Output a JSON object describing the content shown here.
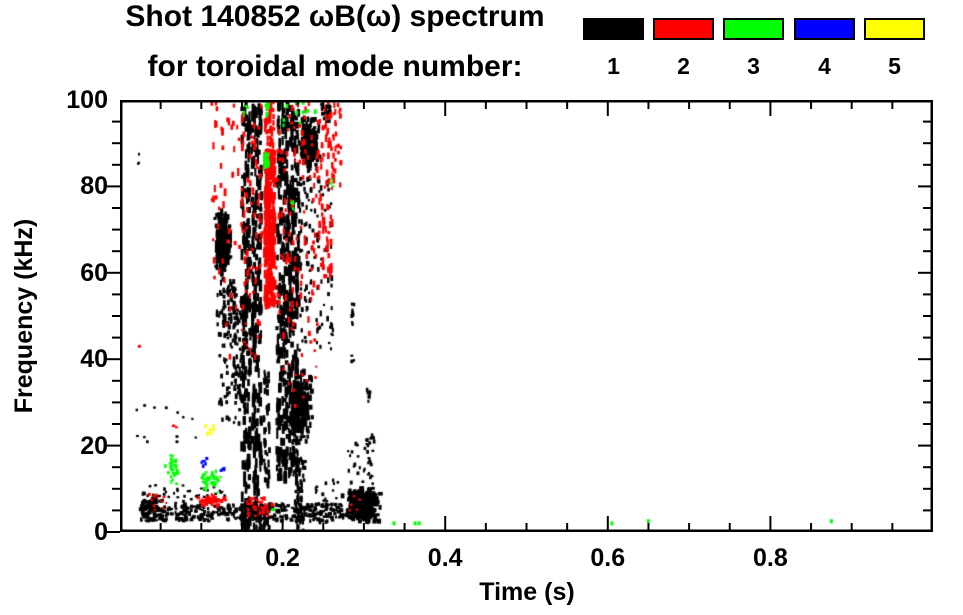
{
  "title": {
    "line1": "Shot 140852 ωB(ω) spectrum",
    "line2": "for toroidal mode number:"
  },
  "legend": {
    "entries": [
      {
        "label": "1",
        "color": "#000000"
      },
      {
        "label": "2",
        "color": "#ff0000"
      },
      {
        "label": "3",
        "color": "#00ff00"
      },
      {
        "label": "4",
        "color": "#0000ff"
      },
      {
        "label": "5",
        "color": "#ffff00"
      }
    ]
  },
  "chart_data": {
    "type": "scatter",
    "title": "Shot 140852 ωB(ω) spectrum for toroidal mode number: 1 2 3 4 5",
    "xlabel": "Time (s)",
    "ylabel": "Frequency (kHz)",
    "xlim": [
      0,
      1.0
    ],
    "ylim": [
      0,
      100
    ],
    "xticks": {
      "values": [
        0.2,
        0.4,
        0.6,
        0.8
      ],
      "labels": [
        "0.2",
        "0.4",
        "0.6",
        "0.8"
      ],
      "minor_step": 0.05
    },
    "yticks": {
      "values": [
        0,
        20,
        40,
        60,
        80,
        100
      ],
      "labels": [
        "0",
        "20",
        "40",
        "60",
        "80",
        "100"
      ],
      "minor_step": 5
    },
    "grid": false,
    "legend_position": "top-right",
    "frame_color": "#000000",
    "series": [
      {
        "name": "1",
        "color": "#000000",
        "clusters": [
          {
            "t": [
              0.025,
              0.275
            ],
            "f": [
              2.5,
              6.5
            ],
            "n": 420,
            "mark": [
              2,
              4,
              2,
              4
            ],
            "dist": "uniform"
          },
          {
            "t": [
              0.027,
              0.052
            ],
            "f": [
              3,
              9
            ],
            "n": 70,
            "mark": [
              2,
              4,
              2,
              4
            ],
            "dist": "uniform"
          },
          {
            "t": [
              0.03,
              0.13
            ],
            "f": [
              6.5,
              11
            ],
            "n": 40,
            "mark": [
              2,
              3,
              2,
              3
            ],
            "dist": "uniform"
          },
          {
            "t": [
              0.018,
              0.095
            ],
            "f": [
              20,
              30
            ],
            "n": 13,
            "mark": [
              2,
              3,
              2,
              3
            ],
            "dist": "uniform"
          },
          {
            "t": [
              0.02,
              0.026
            ],
            "f": [
              85,
              89
            ],
            "n": 3,
            "mark": [
              2,
              2,
              2,
              3
            ],
            "dist": "uniform"
          },
          {
            "t": [
              0.115,
              0.138
            ],
            "f": [
              57,
              76
            ],
            "n": 260,
            "mark": [
              2,
              4,
              3,
              8
            ],
            "dist": "gauss"
          },
          {
            "t": [
              0.118,
              0.142
            ],
            "f": [
              45,
              58
            ],
            "n": 70,
            "mark": [
              2,
              3,
              3,
              6
            ],
            "dist": "uniform"
          },
          {
            "t": [
              0.122,
              0.148
            ],
            "f": [
              25,
              45
            ],
            "n": 45,
            "mark": [
              2,
              3,
              2,
              5
            ],
            "dist": "uniform"
          },
          {
            "t": [
              0.14,
              0.152
            ],
            "f": [
              30,
              55
            ],
            "n": 55,
            "mark": [
              2,
              3,
              3,
              6
            ],
            "dist": "uniform"
          },
          {
            "t": [
              0.15,
              0.16
            ],
            "f": [
              0,
              100
            ],
            "n": 190,
            "mark": [
              2,
              4,
              4,
              12
            ],
            "dist": "uniform"
          },
          {
            "t": [
              0.163,
              0.174
            ],
            "f": [
              0,
              100
            ],
            "n": 190,
            "mark": [
              2,
              4,
              4,
              12
            ],
            "dist": "uniform"
          },
          {
            "t": [
              0.158,
              0.166
            ],
            "f": [
              5,
              95
            ],
            "n": 40,
            "mark": [
              2,
              3,
              3,
              8
            ],
            "dist": "uniform"
          },
          {
            "t": [
              0.177,
              0.184
            ],
            "f": [
              0,
              38
            ],
            "n": 55,
            "mark": [
              2,
              3,
              3,
              8
            ],
            "dist": "uniform"
          },
          {
            "t": [
              0.193,
              0.22
            ],
            "f": [
              12,
              100
            ],
            "n": 430,
            "mark": [
              2,
              4,
              4,
              12
            ],
            "dist": "uniform"
          },
          {
            "t": [
              0.204,
              0.242
            ],
            "f": [
              17,
              40
            ],
            "n": 230,
            "mark": [
              2,
              4,
              3,
              7
            ],
            "dist": "gauss"
          },
          {
            "t": [
              0.216,
              0.248
            ],
            "f": [
              82,
              97
            ],
            "n": 200,
            "mark": [
              2,
              4,
              3,
              7
            ],
            "dist": "gauss"
          },
          {
            "t": [
              0.22,
              0.262
            ],
            "f": [
              42,
              82
            ],
            "n": 110,
            "mark": [
              2,
              3,
              2,
              6
            ],
            "dist": "uniform"
          },
          {
            "t": [
              0.215,
              0.228
            ],
            "f": [
              0,
              17
            ],
            "n": 55,
            "mark": [
              2,
              3,
              3,
              7
            ],
            "dist": "uniform"
          },
          {
            "t": [
              0.24,
              0.268
            ],
            "f": [
              2,
              12
            ],
            "n": 28,
            "mark": [
              2,
              3,
              2,
              4
            ],
            "dist": "uniform"
          },
          {
            "t": [
              0.272,
              0.325
            ],
            "f": [
              1.5,
              11
            ],
            "n": 340,
            "mark": [
              3,
              5,
              3,
              5
            ],
            "dist": "gauss"
          },
          {
            "t": [
              0.28,
              0.312
            ],
            "f": [
              11,
              22
            ],
            "n": 38,
            "mark": [
              2,
              3,
              2,
              4
            ],
            "dist": "uniform"
          },
          {
            "t": [
              0.284,
              0.289
            ],
            "f": [
              48,
              53
            ],
            "n": 9,
            "mark": [
              2,
              3,
              3,
              5
            ],
            "dist": "uniform"
          },
          {
            "t": [
              0.284,
              0.288
            ],
            "f": [
              39,
              41
            ],
            "n": 4,
            "mark": [
              2,
              3,
              2,
              3
            ],
            "dist": "uniform"
          },
          {
            "t": [
              0.303,
              0.308
            ],
            "f": [
              30,
              33
            ],
            "n": 7,
            "mark": [
              2,
              3,
              3,
              4
            ],
            "dist": "uniform"
          },
          {
            "t": [
              0.309,
              0.313
            ],
            "f": [
              20,
              23
            ],
            "n": 5,
            "mark": [
              2,
              3,
              2,
              4
            ],
            "dist": "uniform"
          },
          {
            "t": [
              0.248,
              0.259
            ],
            "f": [
              95,
              99
            ],
            "n": 22,
            "mark": [
              2,
              4,
              3,
              5
            ],
            "dist": "uniform"
          },
          {
            "t": [
              0.238,
              0.244
            ],
            "f": [
              86,
              92
            ],
            "n": 10,
            "mark": [
              2,
              3,
              3,
              5
            ],
            "dist": "uniform"
          }
        ],
        "singles": []
      },
      {
        "name": "2",
        "color": "#ff0000",
        "clusters": [
          {
            "t": [
              0.035,
              0.06
            ],
            "f": [
              5,
              9
            ],
            "n": 13,
            "mark": [
              2,
              3,
              2,
              3
            ],
            "dist": "uniform"
          },
          {
            "t": [
              0.088,
              0.135
            ],
            "f": [
              5.5,
              9.5
            ],
            "n": 45,
            "mark": [
              2,
              4,
              2,
              4
            ],
            "dist": "gauss"
          },
          {
            "t": [
              0.155,
              0.188
            ],
            "f": [
              3,
              8
            ],
            "n": 34,
            "mark": [
              2,
              4,
              2,
              4
            ],
            "dist": "uniform"
          },
          {
            "t": [
              0.064,
              0.07
            ],
            "f": [
              24,
              26
            ],
            "n": 3,
            "mark": [
              2,
              3,
              2,
              3
            ],
            "dist": "uniform"
          },
          {
            "t": [
              0.02,
              0.025
            ],
            "f": [
              42,
              44
            ],
            "n": 2,
            "mark": [
              2,
              2,
              2,
              3
            ],
            "dist": "uniform"
          },
          {
            "t": [
              0.178,
              0.1905
            ],
            "f": [
              52,
              88
            ],
            "n": 240,
            "mark": [
              2,
              4,
              4,
              10
            ],
            "dist": "uniform"
          },
          {
            "t": [
              0.178,
              0.19
            ],
            "f": [
              88,
              100
            ],
            "n": 40,
            "mark": [
              2,
              3,
              3,
              8
            ],
            "dist": "uniform"
          },
          {
            "t": [
              0.112,
              0.175
            ],
            "f": [
              58,
              100
            ],
            "n": 90,
            "mark": [
              2,
              3,
              3,
              8
            ],
            "dist": "uniform"
          },
          {
            "t": [
              0.125,
              0.175
            ],
            "f": [
              40,
              58
            ],
            "n": 22,
            "mark": [
              2,
              3,
              2,
              6
            ],
            "dist": "uniform"
          },
          {
            "t": [
              0.192,
              0.245
            ],
            "f": [
              45,
              100
            ],
            "n": 110,
            "mark": [
              2,
              3,
              3,
              7
            ],
            "dist": "uniform"
          },
          {
            "t": [
              0.245,
              0.262
            ],
            "f": [
              58,
              100
            ],
            "n": 65,
            "mark": [
              2,
              3,
              3,
              8
            ],
            "dist": "uniform"
          },
          {
            "t": [
              0.262,
              0.272
            ],
            "f": [
              80,
              100
            ],
            "n": 28,
            "mark": [
              2,
              3,
              3,
              6
            ],
            "dist": "uniform"
          },
          {
            "t": [
              0.2,
              0.245
            ],
            "f": [
              25,
              45
            ],
            "n": 16,
            "mark": [
              2,
              3,
              2,
              4
            ],
            "dist": "uniform"
          },
          {
            "t": [
              0.282,
              0.3
            ],
            "f": [
              5,
              10
            ],
            "n": 5,
            "mark": [
              2,
              3,
              2,
              3
            ],
            "dist": "uniform"
          }
        ],
        "singles": []
      },
      {
        "name": "3",
        "color": "#00ff00",
        "clusters": [
          {
            "t": [
              0.052,
              0.075
            ],
            "f": [
              10,
              19
            ],
            "n": 38,
            "mark": [
              2,
              3,
              2,
              4
            ],
            "dist": "gauss"
          },
          {
            "t": [
              0.094,
              0.132
            ],
            "f": [
              8.5,
              15
            ],
            "n": 48,
            "mark": [
              2,
              3,
              2,
              4
            ],
            "dist": "gauss"
          },
          {
            "t": [
              0.1755,
              0.1835
            ],
            "f": [
              83,
              89
            ],
            "n": 20,
            "mark": [
              2,
              4,
              3,
              6
            ],
            "dist": "gauss"
          },
          {
            "t": [
              0.176,
              0.184
            ],
            "f": [
              95,
              100
            ],
            "n": 10,
            "mark": [
              2,
              3,
              3,
              5
            ],
            "dist": "uniform"
          },
          {
            "t": [
              0.2,
              0.242
            ],
            "f": [
              94,
              100
            ],
            "n": 12,
            "mark": [
              2,
              3,
              2,
              5
            ],
            "dist": "uniform"
          },
          {
            "t": [
              0.208,
              0.214
            ],
            "f": [
              74,
              79
            ],
            "n": 5,
            "mark": [
              2,
              3,
              2,
              4
            ],
            "dist": "uniform"
          },
          {
            "t": [
              0.259,
              0.263
            ],
            "f": [
              80,
              83
            ],
            "n": 3,
            "mark": [
              2,
              3,
              2,
              3
            ],
            "dist": "uniform"
          },
          {
            "t": [
              0.185,
              0.192
            ],
            "f": [
              4,
              6
            ],
            "n": 5,
            "mark": [
              2,
              3,
              2,
              3
            ],
            "dist": "uniform"
          },
          {
            "t": [
              0.152,
              0.158
            ],
            "f": [
              96,
              100
            ],
            "n": 4,
            "mark": [
              2,
              3,
              2,
              4
            ],
            "dist": "uniform"
          }
        ],
        "singles": [
          [
            0.337,
            2
          ],
          [
            0.363,
            2
          ],
          [
            0.368,
            2
          ],
          [
            0.605,
            2
          ],
          [
            0.65,
            2.5
          ],
          [
            0.875,
            2.5
          ]
        ]
      },
      {
        "name": "4",
        "color": "#0000ff",
        "clusters": [
          {
            "t": [
              0.1,
              0.109
            ],
            "f": [
              15,
              17.5
            ],
            "n": 7,
            "mark": [
              2,
              3,
              2,
              4
            ],
            "dist": "uniform"
          },
          {
            "t": [
              0.124,
              0.13
            ],
            "f": [
              13.5,
              15
            ],
            "n": 5,
            "mark": [
              2,
              3,
              2,
              3
            ],
            "dist": "uniform"
          }
        ],
        "singles": []
      },
      {
        "name": "5",
        "color": "#ffff00",
        "clusters": [
          {
            "t": [
              0.104,
              0.118
            ],
            "f": [
              21,
              25
            ],
            "n": 9,
            "mark": [
              2,
              3,
              2,
              4
            ],
            "dist": "uniform"
          }
        ],
        "singles": []
      }
    ]
  }
}
